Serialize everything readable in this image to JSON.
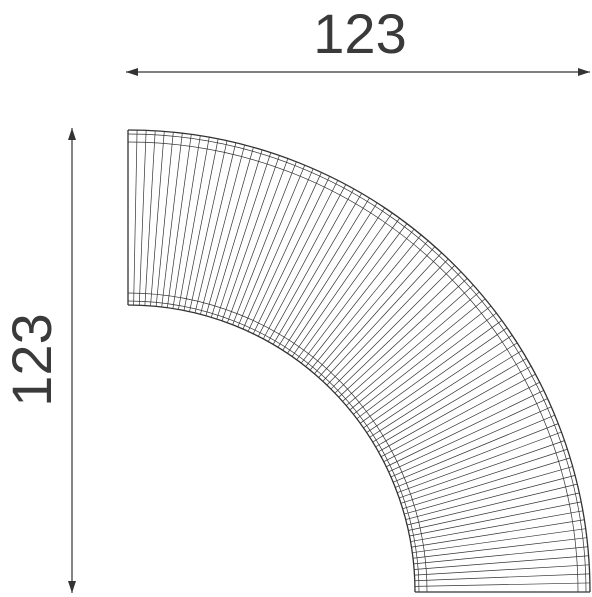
{
  "dimensions": {
    "width": "123",
    "height": "123"
  }
}
